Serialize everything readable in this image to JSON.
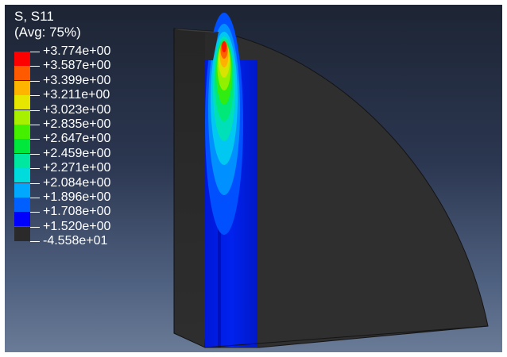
{
  "legend": {
    "title_line1": "S, S11",
    "title_line2": "(Avg: 75%)",
    "colors": [
      "#ff0000",
      "#ff5a00",
      "#ffb400",
      "#e6e600",
      "#a6f000",
      "#44f000",
      "#00e83c",
      "#00e8a0",
      "#00dcdc",
      "#00a8ff",
      "#0060ff",
      "#0000ff",
      "#2a2a2a"
    ],
    "values": [
      "+3.774e+00",
      "+3.587e+00",
      "+3.399e+00",
      "+3.211e+00",
      "+3.023e+00",
      "+2.835e+00",
      "+2.647e+00",
      "+2.459e+00",
      "+2.271e+00",
      "+2.084e+00",
      "+1.896e+00",
      "+1.708e+00",
      "+1.520e+00",
      "-4.558e+01"
    ]
  }
}
